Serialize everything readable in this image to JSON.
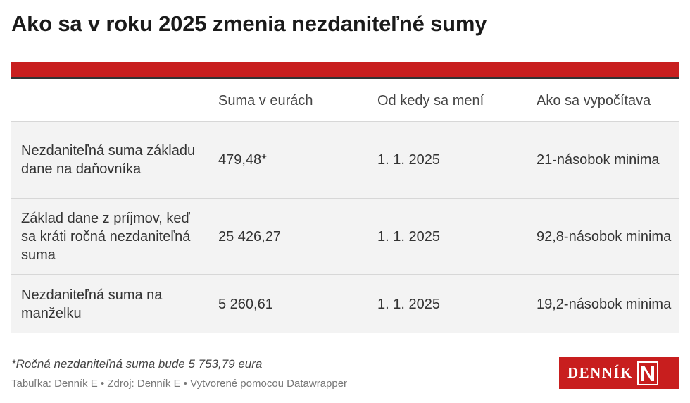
{
  "title": "Ako sa v roku 2025 zmenia nezdaniteľné sumy",
  "table": {
    "headers": [
      "",
      "Suma v eurách",
      "Od kedy sa mení",
      "Ako sa vypočítava"
    ],
    "rows": [
      [
        "Nezdaniteľná suma základu dane na daňovníka",
        "479,48*",
        "1. 1. 2025",
        "21-násobok minima"
      ],
      [
        "Základ dane z príjmov, keď sa kráti ročná nezdaniteľná suma",
        "25 426,27",
        "1. 1. 2025",
        "92,8-násobok minima"
      ],
      [
        "Nezdaniteľná suma na manželku",
        "5 260,61",
        "1. 1. 2025",
        "19,2-násobok minima"
      ]
    ]
  },
  "footnote": "*Ročná nezdaniteľná suma bude 5 753,79 eura",
  "credits": "Tabuľka: Denník E • Zdroj: Denník E • Vytvorené pomocou Datawrapper",
  "logo": {
    "text": "DENNÍK",
    "mark": "N"
  },
  "colors": {
    "accent": "#c81e1e",
    "row_background": "#f3f3f3"
  }
}
